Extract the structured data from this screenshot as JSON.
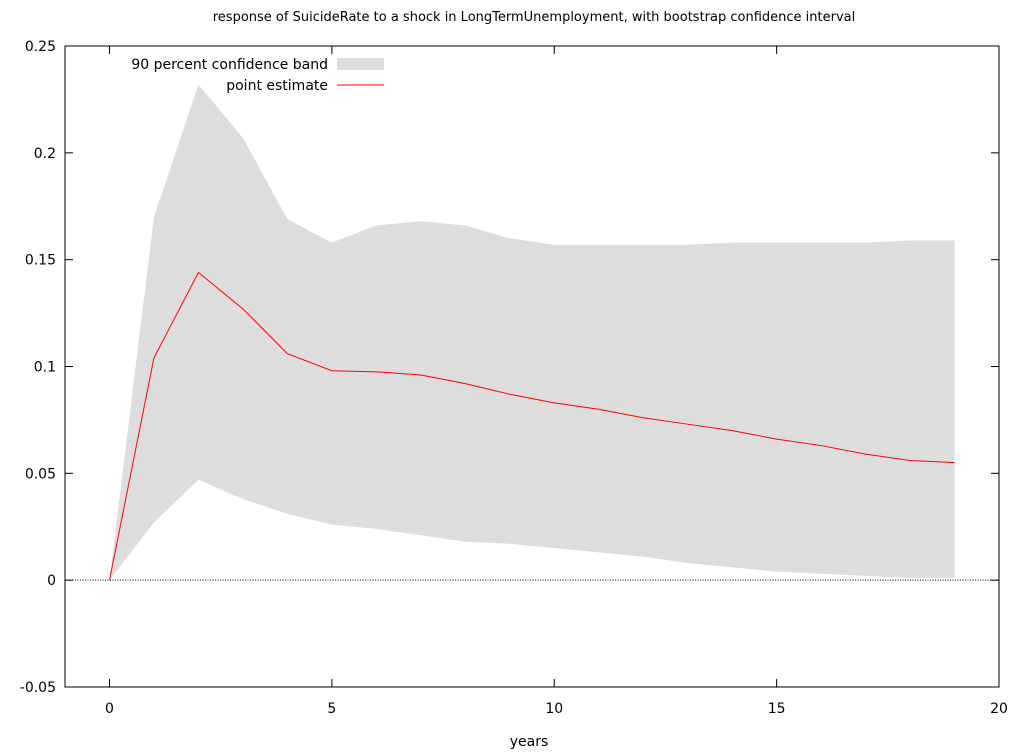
{
  "chart_data": {
    "type": "area",
    "title": "response of SuicideRate to a shock in LongTermUnemployment, with bootstrap confidence interval",
    "xlabel": "years",
    "ylabel": "",
    "xlim": [
      -1,
      20
    ],
    "ylim": [
      -0.05,
      0.25
    ],
    "xticks": [
      0,
      5,
      10,
      15,
      20
    ],
    "yticks": [
      -0.05,
      0,
      0.05,
      0.1,
      0.15,
      0.2,
      0.25
    ],
    "ytick_labels": [
      "-0.05",
      "0",
      "0.05",
      "0.1",
      "0.15",
      "0.2",
      "0.25"
    ],
    "legend_position": "top-left",
    "grid": false,
    "zero_line": true,
    "x": [
      0,
      1,
      2,
      3,
      4,
      5,
      6,
      7,
      8,
      9,
      10,
      11,
      12,
      13,
      14,
      15,
      16,
      17,
      18,
      19
    ],
    "series": [
      {
        "name": "90 percent confidence band",
        "kind": "band",
        "color": "#dddddd",
        "lower": [
          0,
          0.027,
          0.047,
          0.038,
          0.031,
          0.026,
          0.024,
          0.021,
          0.018,
          0.017,
          0.015,
          0.013,
          0.011,
          0.008,
          0.006,
          0.004,
          0.003,
          0.002,
          0.001,
          0.001
        ],
        "upper": [
          0,
          0.17,
          0.232,
          0.207,
          0.169,
          0.158,
          0.166,
          0.168,
          0.166,
          0.16,
          0.157,
          0.157,
          0.157,
          0.157,
          0.158,
          0.158,
          0.158,
          0.158,
          0.159,
          0.159
        ]
      },
      {
        "name": "point estimate",
        "kind": "line",
        "color": "#ff0000",
        "values": [
          0,
          0.104,
          0.144,
          0.127,
          0.106,
          0.098,
          0.0975,
          0.096,
          0.092,
          0.087,
          0.083,
          0.08,
          0.076,
          0.073,
          0.07,
          0.066,
          0.063,
          0.059,
          0.056,
          0.055
        ]
      }
    ]
  }
}
